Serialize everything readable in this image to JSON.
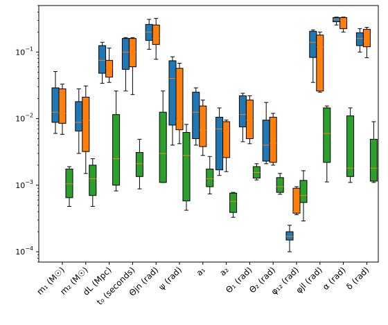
{
  "chart_data": {
    "type": "boxplot",
    "yscale": "log",
    "ylim": [
      7e-05,
      0.5
    ],
    "y_ticks": [
      {
        "value": 0.0001,
        "base": "10",
        "exp": "−4"
      },
      {
        "value": 0.001,
        "base": "10",
        "exp": "−3"
      },
      {
        "value": 0.01,
        "base": "10",
        "exp": "−2"
      },
      {
        "value": 0.1,
        "base": "10",
        "exp": "−1"
      }
    ],
    "categories": [
      "m₁ (M☉)",
      "m₂ (M☉)",
      "dL (Mpc)",
      "t₀ (seconds)",
      "Θjn (rad)",
      "ψ (rad)",
      "a₁",
      "a₂",
      "Θ₁ (rad)",
      "Θ₂ (rad)",
      "φ₁₂ (rad)",
      "φjl (rad)",
      "α (rad)",
      "δ (rad)"
    ],
    "colors": {
      "s1": "#1f77b4",
      "s2": "#ff7f0e",
      "s3": "#2ca02c",
      "median": "#ff7f0e",
      "whisker": "#000000"
    },
    "series": [
      {
        "color": "#1f77b4",
        "offset": -10,
        "boxes": [
          {
            "q1": 0.0088,
            "median": 0.0125,
            "q3": 0.029,
            "lo": 0.006,
            "hi": 0.051
          },
          {
            "q1": 0.0065,
            "median": 0.0088,
            "q3": 0.018,
            "lo": 0.003,
            "hi": 0.028
          },
          {
            "q1": 0.048,
            "median": 0.075,
            "q3": 0.125,
            "lo": 0.034,
            "hi": 0.14
          },
          {
            "q1": 0.055,
            "median": 0.1,
            "q3": 0.16,
            "lo": 0.026,
            "hi": 0.165
          },
          {
            "q1": 0.15,
            "median": 0.2,
            "q3": 0.26,
            "lo": 0.11,
            "hi": 0.31
          },
          {
            "q1": 0.008,
            "median": 0.04,
            "q3": 0.074,
            "lo": 0.004,
            "hi": 0.085
          },
          {
            "q1": 0.005,
            "median": 0.0125,
            "q3": 0.025,
            "lo": 0.004,
            "hi": 0.029
          },
          {
            "q1": 0.0017,
            "median": 0.007,
            "q3": 0.0105,
            "lo": 0.0014,
            "hi": 0.0145
          },
          {
            "q1": 0.0075,
            "median": 0.0115,
            "q3": 0.022,
            "lo": 0.0045,
            "hi": 0.024
          },
          {
            "q1": 0.0023,
            "median": 0.004,
            "q3": 0.0095,
            "lo": 0.0021,
            "hi": 0.0175
          },
          {
            "q1": 0.00015,
            "median": 0.00017,
            "q3": 0.0002,
            "lo": 0.0001,
            "hi": 0.00025
          },
          {
            "q1": 0.083,
            "median": 0.14,
            "q3": 0.205,
            "lo": 0.035,
            "hi": 0.215
          },
          {
            "q1": 0.285,
            "median": 0.31,
            "q3": 0.33,
            "lo": 0.255,
            "hi": 0.335
          },
          {
            "q1": 0.125,
            "median": 0.16,
            "q3": 0.195,
            "lo": 0.1,
            "hi": 0.225
          }
        ]
      },
      {
        "color": "#ff7f0e",
        "offset": 0,
        "boxes": [
          {
            "q1": 0.0085,
            "median": 0.012,
            "q3": 0.028,
            "lo": 0.0058,
            "hi": 0.033
          },
          {
            "q1": 0.0032,
            "median": 0.0095,
            "q3": 0.021,
            "lo": 0.0015,
            "hi": 0.031
          },
          {
            "q1": 0.042,
            "median": 0.058,
            "q3": 0.075,
            "lo": 0.035,
            "hi": 0.115
          },
          {
            "q1": 0.06,
            "median": 0.1,
            "q3": 0.16,
            "lo": 0.023,
            "hi": 0.165
          },
          {
            "q1": 0.13,
            "median": 0.16,
            "q3": 0.255,
            "lo": 0.078,
            "hi": 0.32
          },
          {
            "q1": 0.0068,
            "median": 0.009,
            "q3": 0.057,
            "lo": 0.0042,
            "hi": 0.068
          },
          {
            "q1": 0.0038,
            "median": 0.0068,
            "q3": 0.0155,
            "lo": 0.0028,
            "hi": 0.019
          },
          {
            "q1": 0.0026,
            "median": 0.0065,
            "q3": 0.009,
            "lo": 0.0016,
            "hi": 0.0095
          },
          {
            "q1": 0.005,
            "median": 0.0095,
            "q3": 0.019,
            "lo": 0.0042,
            "hi": 0.022
          },
          {
            "q1": 0.0022,
            "median": 0.0043,
            "q3": 0.0105,
            "lo": 0.002,
            "hi": 0.012
          },
          {
            "q1": 0.00038,
            "median": 0.0004,
            "q3": 0.0009,
            "lo": 0.00036,
            "hi": 0.00095
          },
          {
            "q1": 0.026,
            "median": 0.12,
            "q3": 0.18,
            "lo": 0.025,
            "hi": 0.2
          },
          {
            "q1": 0.225,
            "median": 0.3,
            "q3": 0.33,
            "lo": 0.2,
            "hi": 0.335
          },
          {
            "q1": 0.12,
            "median": 0.145,
            "q3": 0.22,
            "lo": 0.082,
            "hi": 0.235
          }
        ]
      },
      {
        "color": "#2ca02c",
        "offset": 10,
        "boxes": [
          {
            "q1": 0.00065,
            "median": 0.00105,
            "q3": 0.00175,
            "lo": 0.00048,
            "hi": 0.0019
          },
          {
            "q1": 0.0007,
            "median": 0.00125,
            "q3": 0.002,
            "lo": 0.00048,
            "hi": 0.0025
          },
          {
            "q1": 0.001,
            "median": 0.0025,
            "q3": 0.0115,
            "lo": 0.00082,
            "hi": 0.026
          },
          {
            "q1": 0.00135,
            "median": 0.0021,
            "q3": 0.0031,
            "lo": 0.00088,
            "hi": 0.0049
          },
          {
            "q1": 0.0011,
            "median": 0.003,
            "q3": 0.0125,
            "lo": 0.0011,
            "hi": 0.026
          },
          {
            "q1": 0.00058,
            "median": 0.0028,
            "q3": 0.0062,
            "lo": 0.00042,
            "hi": 0.0082
          },
          {
            "q1": 0.00095,
            "median": 0.00125,
            "q3": 0.00175,
            "lo": 0.00074,
            "hi": 0.0027
          },
          {
            "q1": 0.00039,
            "median": 0.00057,
            "q3": 0.00076,
            "lo": 0.00033,
            "hi": 0.00078
          },
          {
            "q1": 0.00128,
            "median": 0.00155,
            "q3": 0.0019,
            "lo": 0.0012,
            "hi": 0.0021
          },
          {
            "q1": 0.00078,
            "median": 0.00095,
            "q3": 0.0013,
            "lo": 0.00073,
            "hi": 0.0015
          },
          {
            "q1": 0.00055,
            "median": 0.0007,
            "q3": 0.00118,
            "lo": 0.00029,
            "hi": 0.00165
          },
          {
            "q1": 0.0022,
            "median": 0.006,
            "q3": 0.0145,
            "lo": 0.00112,
            "hi": 0.0155
          },
          {
            "q1": 0.00135,
            "median": 0.0018,
            "q3": 0.011,
            "lo": 0.0011,
            "hi": 0.0145
          },
          {
            "q1": 0.00115,
            "median": 0.0018,
            "q3": 0.0049,
            "lo": 0.0011,
            "hi": 0.009
          }
        ]
      }
    ],
    "title": "",
    "xlabel": "",
    "ylabel": ""
  }
}
